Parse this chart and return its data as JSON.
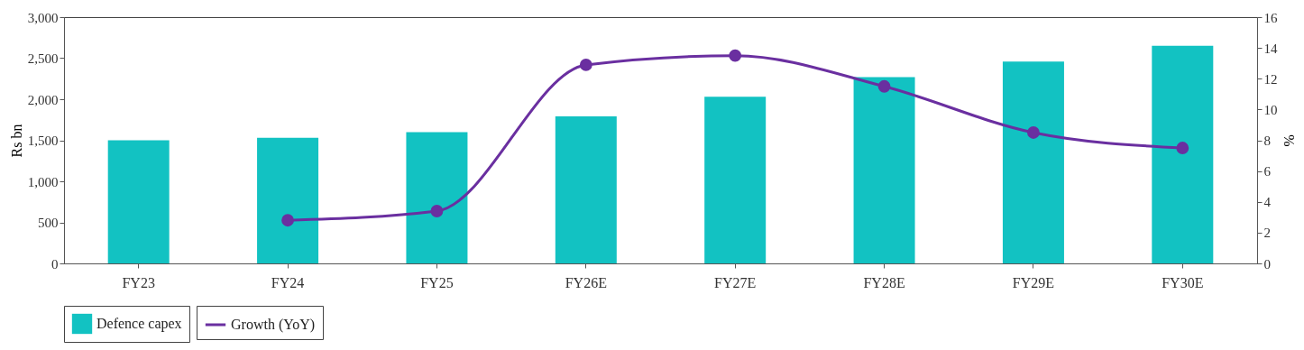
{
  "chart_data": {
    "type": "bar",
    "categories": [
      "FY23",
      "FY24",
      "FY25",
      "FY26E",
      "FY27E",
      "FY28E",
      "FY29E",
      "FY30E"
    ],
    "series": [
      {
        "name": "Defence capex",
        "color": "#12c2c2",
        "values": [
          1500,
          1530,
          1600,
          1790,
          2030,
          2270,
          2460,
          2650
        ]
      },
      {
        "name": "Growth (YoY)",
        "type": "line",
        "axis": "y2",
        "color": "#6a2fa0",
        "values": [
          null,
          2.8,
          3.4,
          12.9,
          13.5,
          11.5,
          8.5,
          7.5
        ]
      }
    ],
    "ylabel": "Rs bn",
    "y2label": "%",
    "ylim": [
      0,
      3000
    ],
    "yticks": [
      0,
      500,
      {
        "value": 1000,
        "label": "1,000"
      },
      {
        "value": 1500,
        "label": "1,500"
      },
      {
        "value": 2000,
        "label": "2,000"
      },
      {
        "value": 2500,
        "label": "2,500"
      },
      {
        "value": 3000,
        "label": "3,000"
      }
    ],
    "y2lim": [
      0,
      16
    ],
    "y2ticks": [
      0,
      2,
      4,
      6,
      8,
      10,
      12,
      14,
      16
    ],
    "legend": "bottom",
    "marker": "circle",
    "grid": false
  }
}
